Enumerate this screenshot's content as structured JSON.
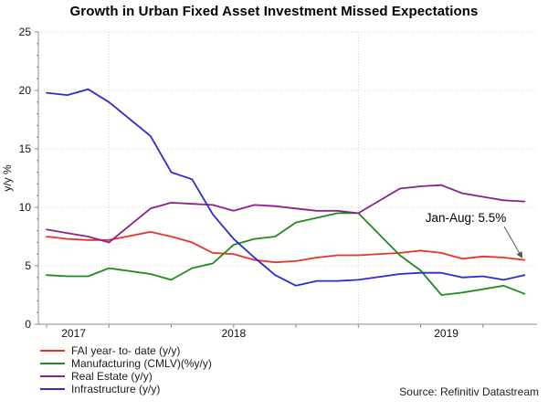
{
  "source_note": "Source: Refinitiv Datastream",
  "chart_data": {
    "type": "line",
    "title": "Growth in Urban Fixed Asset Investment Missed Expectations",
    "ylabel": "y/y %",
    "ylim": [
      0,
      25
    ],
    "yticks": [
      0,
      5,
      10,
      15,
      20,
      25
    ],
    "x_year_labels": [
      "2017",
      "2018",
      "2019"
    ],
    "year_gridlines_at": [
      "2017-12",
      "2018-12"
    ],
    "grid": "dotted horizontal at yticks, dotted vertical at year starts",
    "legend_position": "bottom-left",
    "months": [
      "2017-09",
      "2017-10",
      "2017-11",
      "2017-12",
      "2018-02",
      "2018-03",
      "2018-04",
      "2018-05",
      "2018-06",
      "2018-07",
      "2018-08",
      "2018-09",
      "2018-10",
      "2018-11",
      "2018-12",
      "2019-02",
      "2019-03",
      "2019-04",
      "2019-05",
      "2019-06",
      "2019-07",
      "2019-08"
    ],
    "series": [
      {
        "name": "FAI year- to- date (y/y)",
        "color": "#e8322a",
        "values": [
          7.5,
          7.3,
          7.2,
          7.2,
          7.9,
          7.5,
          7.0,
          6.1,
          6.0,
          5.5,
          5.3,
          5.4,
          5.7,
          5.9,
          5.9,
          6.1,
          6.3,
          6.1,
          5.6,
          5.8,
          5.7,
          5.5
        ]
      },
      {
        "name": "Manufacturing (CMLV)(%y/y)",
        "color": "#1f8a1f",
        "values": [
          4.2,
          4.1,
          4.1,
          4.8,
          4.3,
          3.8,
          4.8,
          5.2,
          6.8,
          7.3,
          7.5,
          8.7,
          9.1,
          9.5,
          9.5,
          5.9,
          4.6,
          2.5,
          2.7,
          3.0,
          3.3,
          2.6
        ]
      },
      {
        "name": "Real Estate (y/y)",
        "color": "#8e1f8e",
        "values": [
          8.1,
          7.8,
          7.5,
          7.0,
          9.9,
          10.4,
          10.3,
          10.2,
          9.7,
          10.2,
          10.1,
          9.9,
          9.7,
          9.7,
          9.5,
          11.6,
          11.8,
          11.9,
          11.2,
          10.9,
          10.6,
          10.5
        ]
      },
      {
        "name": "Infrastructure (y/y)",
        "color": "#2b2bd8",
        "values": [
          19.8,
          19.6,
          20.1,
          19.0,
          16.1,
          13.0,
          12.4,
          9.4,
          7.3,
          5.7,
          4.2,
          3.3,
          3.7,
          3.7,
          3.8,
          4.3,
          4.4,
          4.4,
          4.0,
          4.1,
          3.8,
          4.2
        ]
      }
    ],
    "annotation": {
      "text": "Jan-Aug: 5.5%",
      "points_to": {
        "month": "2019-08",
        "series": "FAI year- to- date (y/y)",
        "value": 5.5
      }
    }
  }
}
